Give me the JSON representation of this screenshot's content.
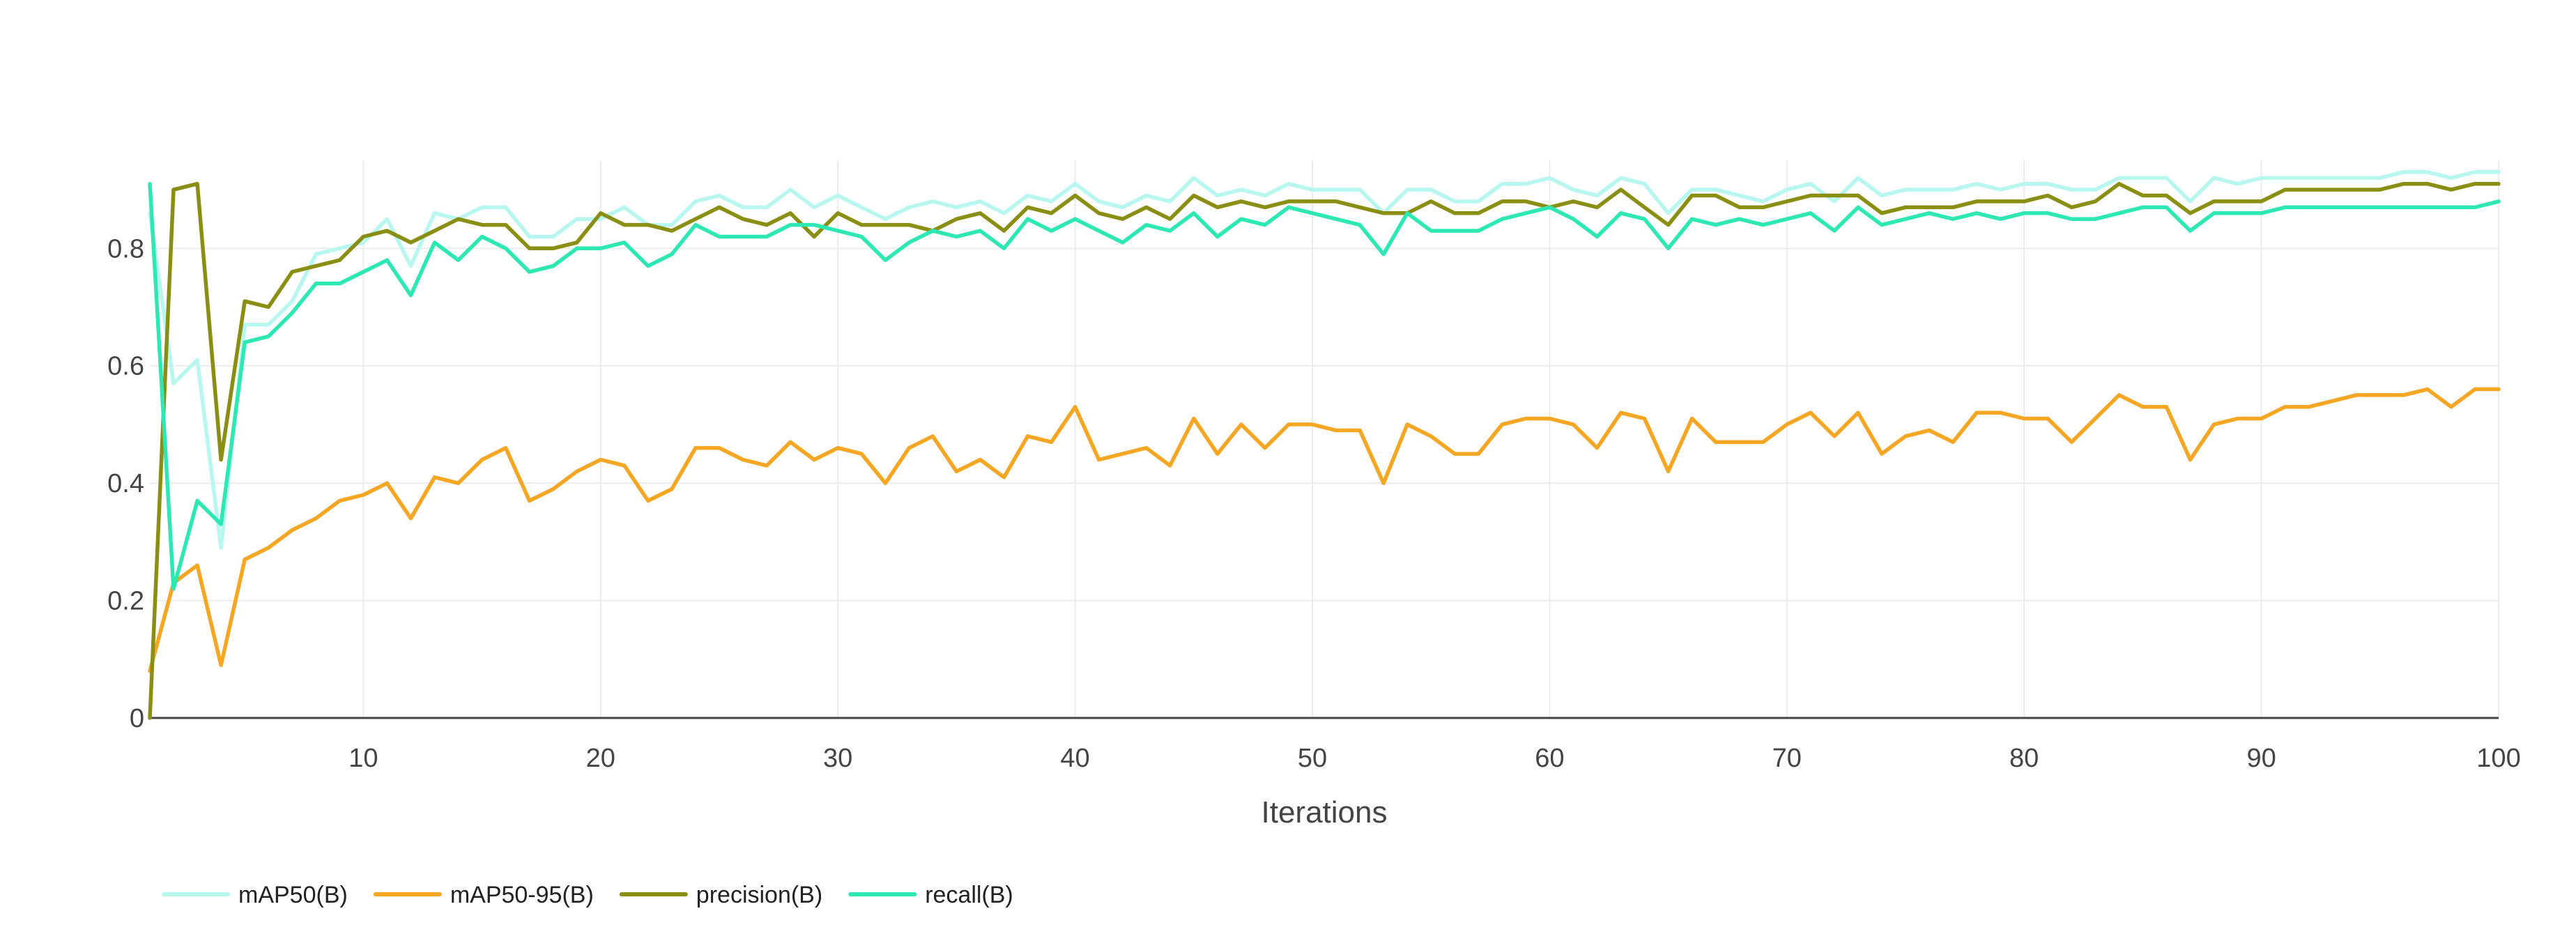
{
  "chart_data": {
    "type": "line",
    "title": "",
    "xlabel": "Iterations",
    "ylabel": "",
    "xlim": [
      1,
      100
    ],
    "ylim": [
      0,
      0.95
    ],
    "x_ticks": [
      10,
      20,
      30,
      40,
      50,
      60,
      70,
      80,
      90,
      100
    ],
    "y_ticks": [
      0,
      0.2,
      0.4,
      0.6,
      0.8
    ],
    "x_tick_labels": [
      "10",
      "20",
      "30",
      "40",
      "50",
      "60",
      "70",
      "80",
      "90",
      "100"
    ],
    "y_tick_labels": [
      "0",
      "0.2",
      "0.4",
      "0.6",
      "0.8"
    ],
    "grid": true,
    "legend_position": "bottom-left",
    "series": [
      {
        "name": "mAP50(B)",
        "color": "#b8f7f0",
        "values": [
          0.86,
          0.57,
          0.61,
          0.29,
          0.67,
          0.67,
          0.71,
          0.79,
          0.8,
          0.81,
          0.85,
          0.77,
          0.86,
          0.85,
          0.87,
          0.87,
          0.82,
          0.82,
          0.85,
          0.85,
          0.87,
          0.84,
          0.84,
          0.88,
          0.89,
          0.87,
          0.87,
          0.9,
          0.87,
          0.89,
          0.87,
          0.85,
          0.87,
          0.88,
          0.87,
          0.88,
          0.86,
          0.89,
          0.88,
          0.91,
          0.88,
          0.87,
          0.89,
          0.88,
          0.92,
          0.89,
          0.9,
          0.89,
          0.91,
          0.9,
          0.9,
          0.9,
          0.86,
          0.9,
          0.9,
          0.88,
          0.88,
          0.91,
          0.91,
          0.92,
          0.9,
          0.89,
          0.92,
          0.91,
          0.86,
          0.9,
          0.9,
          0.89,
          0.88,
          0.9,
          0.91,
          0.88,
          0.92,
          0.89,
          0.9,
          0.9,
          0.9,
          0.91,
          0.9,
          0.91,
          0.91,
          0.9,
          0.9,
          0.92,
          0.92,
          0.92,
          0.88,
          0.92,
          0.91,
          0.92,
          0.92,
          0.92,
          0.92,
          0.92,
          0.92,
          0.93,
          0.93,
          0.92,
          0.93,
          0.93
        ]
      },
      {
        "name": "mAP50-95(B)",
        "color": "#f5a623",
        "values": [
          0.08,
          0.23,
          0.26,
          0.09,
          0.27,
          0.29,
          0.32,
          0.34,
          0.37,
          0.38,
          0.4,
          0.34,
          0.41,
          0.4,
          0.44,
          0.46,
          0.37,
          0.39,
          0.42,
          0.44,
          0.43,
          0.37,
          0.39,
          0.46,
          0.46,
          0.44,
          0.43,
          0.47,
          0.44,
          0.46,
          0.45,
          0.4,
          0.46,
          0.48,
          0.42,
          0.44,
          0.41,
          0.48,
          0.47,
          0.53,
          0.44,
          0.45,
          0.46,
          0.43,
          0.51,
          0.45,
          0.5,
          0.46,
          0.5,
          0.5,
          0.49,
          0.49,
          0.4,
          0.5,
          0.48,
          0.45,
          0.45,
          0.5,
          0.51,
          0.51,
          0.5,
          0.46,
          0.52,
          0.51,
          0.42,
          0.51,
          0.47,
          0.47,
          0.47,
          0.5,
          0.52,
          0.48,
          0.52,
          0.45,
          0.48,
          0.49,
          0.47,
          0.52,
          0.52,
          0.51,
          0.51,
          0.47,
          0.51,
          0.55,
          0.53,
          0.53,
          0.44,
          0.5,
          0.51,
          0.51,
          0.53,
          0.53,
          0.54,
          0.55,
          0.55,
          0.55,
          0.56,
          0.53,
          0.56,
          0.56
        ]
      },
      {
        "name": "precision(B)",
        "color": "#8a8f14",
        "values": [
          0.0,
          0.9,
          0.91,
          0.44,
          0.71,
          0.7,
          0.76,
          0.77,
          0.78,
          0.82,
          0.83,
          0.81,
          0.83,
          0.85,
          0.84,
          0.84,
          0.8,
          0.8,
          0.81,
          0.86,
          0.84,
          0.84,
          0.83,
          0.85,
          0.87,
          0.85,
          0.84,
          0.86,
          0.82,
          0.86,
          0.84,
          0.84,
          0.84,
          0.83,
          0.85,
          0.86,
          0.83,
          0.87,
          0.86,
          0.89,
          0.86,
          0.85,
          0.87,
          0.85,
          0.89,
          0.87,
          0.88,
          0.87,
          0.88,
          0.88,
          0.88,
          0.87,
          0.86,
          0.86,
          0.88,
          0.86,
          0.86,
          0.88,
          0.88,
          0.87,
          0.88,
          0.87,
          0.9,
          0.87,
          0.84,
          0.89,
          0.89,
          0.87,
          0.87,
          0.88,
          0.89,
          0.89,
          0.89,
          0.86,
          0.87,
          0.87,
          0.87,
          0.88,
          0.88,
          0.88,
          0.89,
          0.87,
          0.88,
          0.91,
          0.89,
          0.89,
          0.86,
          0.88,
          0.88,
          0.88,
          0.9,
          0.9,
          0.9,
          0.9,
          0.9,
          0.91,
          0.91,
          0.9,
          0.91,
          0.91
        ]
      },
      {
        "name": "recall(B)",
        "color": "#2ee8b4",
        "values": [
          0.91,
          0.22,
          0.37,
          0.33,
          0.64,
          0.65,
          0.69,
          0.74,
          0.74,
          0.76,
          0.78,
          0.72,
          0.81,
          0.78,
          0.82,
          0.8,
          0.76,
          0.77,
          0.8,
          0.8,
          0.81,
          0.77,
          0.79,
          0.84,
          0.82,
          0.82,
          0.82,
          0.84,
          0.84,
          0.83,
          0.82,
          0.78,
          0.81,
          0.83,
          0.82,
          0.83,
          0.8,
          0.85,
          0.83,
          0.85,
          0.83,
          0.81,
          0.84,
          0.83,
          0.86,
          0.82,
          0.85,
          0.84,
          0.87,
          0.86,
          0.85,
          0.84,
          0.79,
          0.86,
          0.83,
          0.83,
          0.83,
          0.85,
          0.86,
          0.87,
          0.85,
          0.82,
          0.86,
          0.85,
          0.8,
          0.85,
          0.84,
          0.85,
          0.84,
          0.85,
          0.86,
          0.83,
          0.87,
          0.84,
          0.85,
          0.86,
          0.85,
          0.86,
          0.85,
          0.86,
          0.86,
          0.85,
          0.85,
          0.86,
          0.87,
          0.87,
          0.83,
          0.86,
          0.86,
          0.86,
          0.87,
          0.87,
          0.87,
          0.87,
          0.87,
          0.87,
          0.87,
          0.87,
          0.87,
          0.88
        ]
      }
    ]
  }
}
